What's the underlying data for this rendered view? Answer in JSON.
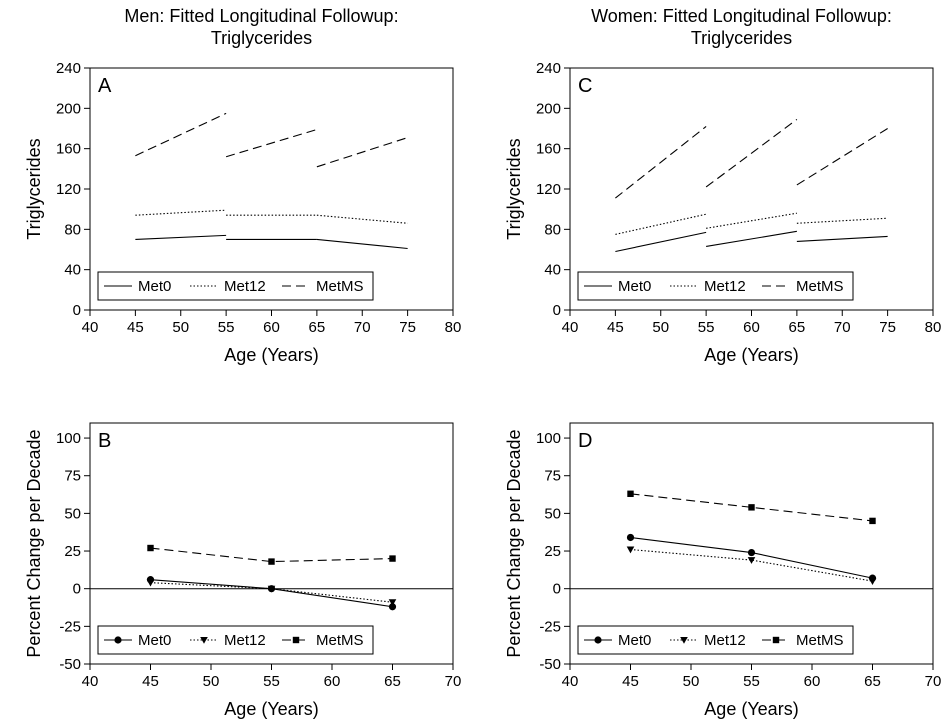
{
  "chart_data": [
    {
      "panel": "A",
      "type": "line",
      "title": "Men: Fitted Longitudinal Followup:\nTriglycerides",
      "xlabel": "Age (Years)",
      "ylabel": "Triglycerides",
      "xlim": [
        40,
        80
      ],
      "ylim": [
        0,
        240
      ],
      "xticks": [
        40,
        45,
        50,
        55,
        60,
        65,
        70,
        75,
        80
      ],
      "yticks": [
        0,
        40,
        80,
        120,
        160,
        200,
        240
      ],
      "legend_position": "bottom-left",
      "series": [
        {
          "name": "Met0",
          "style": "solid",
          "marker": "none",
          "segments": [
            [
              [
                45,
                70
              ],
              [
                55,
                74
              ]
            ],
            [
              [
                55,
                70
              ],
              [
                65,
                70
              ]
            ],
            [
              [
                65,
                70
              ],
              [
                75,
                61
              ]
            ]
          ]
        },
        {
          "name": "Met12",
          "style": "dotted",
          "marker": "none",
          "segments": [
            [
              [
                45,
                94
              ],
              [
                55,
                99
              ]
            ],
            [
              [
                55,
                94
              ],
              [
                65,
                94
              ]
            ],
            [
              [
                65,
                94
              ],
              [
                75,
                86
              ]
            ]
          ]
        },
        {
          "name": "MetMS",
          "style": "dashed",
          "marker": "none",
          "segments": [
            [
              [
                45,
                153
              ],
              [
                55,
                195
              ]
            ],
            [
              [
                55,
                152
              ],
              [
                65,
                179
              ]
            ],
            [
              [
                65,
                142
              ],
              [
                75,
                171
              ]
            ]
          ]
        }
      ]
    },
    {
      "panel": "C",
      "type": "line",
      "title": "Women: Fitted Longitudinal Followup:\nTriglycerides",
      "xlabel": "Age (Years)",
      "ylabel": "Triglycerides",
      "xlim": [
        40,
        80
      ],
      "ylim": [
        0,
        240
      ],
      "xticks": [
        40,
        45,
        50,
        55,
        60,
        65,
        70,
        75,
        80
      ],
      "yticks": [
        0,
        40,
        80,
        120,
        160,
        200,
        240
      ],
      "legend_position": "bottom-left",
      "series": [
        {
          "name": "Met0",
          "style": "solid",
          "marker": "none",
          "segments": [
            [
              [
                45,
                58
              ],
              [
                55,
                77
              ]
            ],
            [
              [
                55,
                63
              ],
              [
                65,
                78
              ]
            ],
            [
              [
                65,
                68
              ],
              [
                75,
                73
              ]
            ]
          ]
        },
        {
          "name": "Met12",
          "style": "dotted",
          "marker": "none",
          "segments": [
            [
              [
                45,
                75
              ],
              [
                55,
                95
              ]
            ],
            [
              [
                55,
                81
              ],
              [
                65,
                96
              ]
            ],
            [
              [
                65,
                86
              ],
              [
                75,
                91
              ]
            ]
          ]
        },
        {
          "name": "MetMS",
          "style": "dashed",
          "marker": "none",
          "segments": [
            [
              [
                45,
                111
              ],
              [
                55,
                182
              ]
            ],
            [
              [
                55,
                122
              ],
              [
                65,
                189
              ]
            ],
            [
              [
                65,
                124
              ],
              [
                75,
                180
              ]
            ]
          ]
        }
      ]
    },
    {
      "panel": "B",
      "type": "line",
      "title": "",
      "xlabel": "Age (Years)",
      "ylabel": "Percent Change per Decade",
      "xlim": [
        40,
        70
      ],
      "ylim": [
        -50,
        110
      ],
      "xticks": [
        40,
        45,
        50,
        55,
        60,
        65,
        70
      ],
      "yticks": [
        -50,
        -25,
        0,
        25,
        50,
        75,
        100
      ],
      "zero_line": true,
      "legend_position": "bottom-left",
      "series": [
        {
          "name": "Met0",
          "style": "solid",
          "marker": "circle",
          "segments": [
            [
              [
                45,
                6
              ],
              [
                55,
                0
              ],
              [
                65,
                -12
              ]
            ]
          ]
        },
        {
          "name": "Met12",
          "style": "dotted",
          "marker": "triangle-down",
          "segments": [
            [
              [
                45,
                4
              ],
              [
                55,
                0
              ],
              [
                65,
                -9
              ]
            ]
          ]
        },
        {
          "name": "MetMS",
          "style": "dashed",
          "marker": "square",
          "segments": [
            [
              [
                45,
                27
              ],
              [
                55,
                18
              ],
              [
                65,
                20
              ]
            ]
          ]
        }
      ]
    },
    {
      "panel": "D",
      "type": "line",
      "title": "",
      "xlabel": "Age (Years)",
      "ylabel": "Percent Change per Decade",
      "xlim": [
        40,
        70
      ],
      "ylim": [
        -50,
        110
      ],
      "xticks": [
        40,
        45,
        50,
        55,
        60,
        65,
        70
      ],
      "yticks": [
        -50,
        -25,
        0,
        25,
        50,
        75,
        100
      ],
      "zero_line": true,
      "legend_position": "bottom-left",
      "series": [
        {
          "name": "Met0",
          "style": "solid",
          "marker": "circle",
          "segments": [
            [
              [
                45,
                34
              ],
              [
                55,
                24
              ],
              [
                65,
                7
              ]
            ]
          ]
        },
        {
          "name": "Met12",
          "style": "dotted",
          "marker": "triangle-down",
          "segments": [
            [
              [
                45,
                26
              ],
              [
                55,
                19
              ],
              [
                65,
                5
              ]
            ]
          ]
        },
        {
          "name": "MetMS",
          "style": "dashed",
          "marker": "square",
          "segments": [
            [
              [
                45,
                63
              ],
              [
                55,
                54
              ],
              [
                65,
                45
              ]
            ]
          ]
        }
      ]
    }
  ]
}
